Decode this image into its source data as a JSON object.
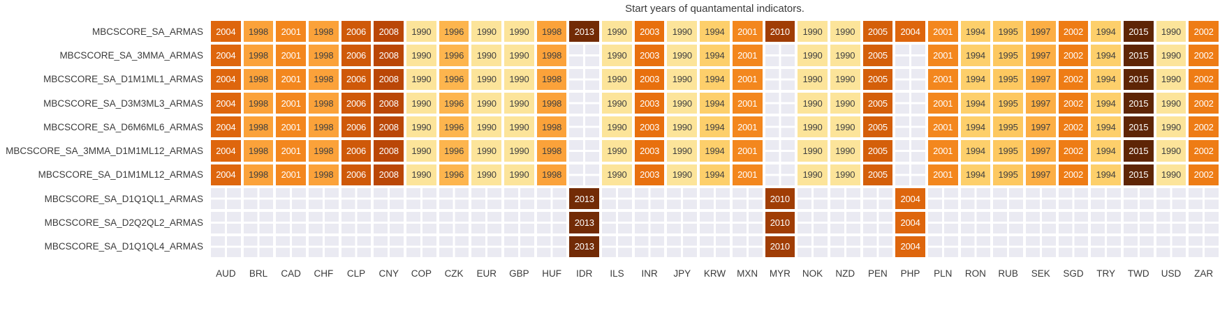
{
  "title": "Start years of quantamental indicators.",
  "chart_data": {
    "type": "heatmap",
    "title": "Start years of quantamental indicators.",
    "colormap": "YlOrBr",
    "value_range": [
      1990,
      2015
    ],
    "grid_background": "#ffffff",
    "empty_cell_color": "#eaeaf2",
    "dark_text_color": "#3f3f3f",
    "light_text_color": "#ffffff",
    "dark_text_max_year": 1998,
    "year_colors": {
      "1990": "#fce49a",
      "1994": "#fdcf6b",
      "1995": "#fdc860",
      "1996": "#fdb54e",
      "1997": "#fcae44",
      "1998": "#fba23a",
      "2001": "#f3871e",
      "2002": "#ee7c15",
      "2003": "#e8700e",
      "2004": "#de660d",
      "2005": "#d45f0a",
      "2006": "#cf5909",
      "2008": "#ba4707",
      "2010": "#a03d05",
      "2013": "#722b06",
      "2015": "#5e2506"
    },
    "columns": [
      "AUD",
      "BRL",
      "CAD",
      "CHF",
      "CLP",
      "CNY",
      "COP",
      "CZK",
      "EUR",
      "GBP",
      "HUF",
      "IDR",
      "ILS",
      "INR",
      "JPY",
      "KRW",
      "MXN",
      "MYR",
      "NOK",
      "NZD",
      "PEN",
      "PHP",
      "PLN",
      "RON",
      "RUB",
      "SEK",
      "SGD",
      "TRY",
      "TWD",
      "USD",
      "ZAR"
    ],
    "rows": [
      "MBCSCORE_SA_ARMAS",
      "MBCSCORE_SA_3MMA_ARMAS",
      "MBCSCORE_SA_D1M1ML1_ARMAS",
      "MBCSCORE_SA_D3M3ML3_ARMAS",
      "MBCSCORE_SA_D6M6ML6_ARMAS",
      "MBCSCORE_SA_3MMA_D1M1ML12_ARMAS",
      "MBCSCORE_SA_D1M1ML12_ARMAS",
      "MBCSCORE_SA_D1Q1QL1_ARMAS",
      "MBCSCORE_SA_D2Q2QL2_ARMAS",
      "MBCSCORE_SA_D1Q1QL4_ARMAS"
    ],
    "values": [
      [
        "2004",
        "1998",
        "2001",
        "1998",
        "2006",
        "2008",
        "1990",
        "1996",
        "1990",
        "1990",
        "1998",
        "2013",
        "1990",
        "2003",
        "1990",
        "1994",
        "2001",
        "2010",
        "1990",
        "1990",
        "2005",
        "2004",
        "2001",
        "1994",
        "1995",
        "1997",
        "2002",
        "1994",
        "2015",
        "1990",
        "2002"
      ],
      [
        "2004",
        "1998",
        "2001",
        "1998",
        "2006",
        "2008",
        "1990",
        "1996",
        "1990",
        "1990",
        "1998",
        "",
        "1990",
        "2003",
        "1990",
        "1994",
        "2001",
        "",
        "1990",
        "1990",
        "2005",
        "",
        "2001",
        "1994",
        "1995",
        "1997",
        "2002",
        "1994",
        "2015",
        "1990",
        "2002"
      ],
      [
        "2004",
        "1998",
        "2001",
        "1998",
        "2006",
        "2008",
        "1990",
        "1996",
        "1990",
        "1990",
        "1998",
        "",
        "1990",
        "2003",
        "1990",
        "1994",
        "2001",
        "",
        "1990",
        "1990",
        "2005",
        "",
        "2001",
        "1994",
        "1995",
        "1997",
        "2002",
        "1994",
        "2015",
        "1990",
        "2002"
      ],
      [
        "2004",
        "1998",
        "2001",
        "1998",
        "2006",
        "2008",
        "1990",
        "1996",
        "1990",
        "1990",
        "1998",
        "",
        "1990",
        "2003",
        "1990",
        "1994",
        "2001",
        "",
        "1990",
        "1990",
        "2005",
        "",
        "2001",
        "1994",
        "1995",
        "1997",
        "2002",
        "1994",
        "2015",
        "1990",
        "2002"
      ],
      [
        "2004",
        "1998",
        "2001",
        "1998",
        "2006",
        "2008",
        "1990",
        "1996",
        "1990",
        "1990",
        "1998",
        "",
        "1990",
        "2003",
        "1990",
        "1994",
        "2001",
        "",
        "1990",
        "1990",
        "2005",
        "",
        "2001",
        "1994",
        "1995",
        "1997",
        "2002",
        "1994",
        "2015",
        "1990",
        "2002"
      ],
      [
        "2004",
        "1998",
        "2001",
        "1998",
        "2006",
        "2008",
        "1990",
        "1996",
        "1990",
        "1990",
        "1998",
        "",
        "1990",
        "2003",
        "1990",
        "1994",
        "2001",
        "",
        "1990",
        "1990",
        "2005",
        "",
        "2001",
        "1994",
        "1995",
        "1997",
        "2002",
        "1994",
        "2015",
        "1990",
        "2002"
      ],
      [
        "2004",
        "1998",
        "2001",
        "1998",
        "2006",
        "2008",
        "1990",
        "1996",
        "1990",
        "1990",
        "1998",
        "",
        "1990",
        "2003",
        "1990",
        "1994",
        "2001",
        "",
        "1990",
        "1990",
        "2005",
        "",
        "2001",
        "1994",
        "1995",
        "1997",
        "2002",
        "1994",
        "2015",
        "1990",
        "2002"
      ],
      [
        "",
        "",
        "",
        "",
        "",
        "",
        "",
        "",
        "",
        "",
        "",
        "2013",
        "",
        "",
        "",
        "",
        "",
        "2010",
        "",
        "",
        "",
        "2004",
        "",
        "",
        "",
        "",
        "",
        "",
        "",
        "",
        ""
      ],
      [
        "",
        "",
        "",
        "",
        "",
        "",
        "",
        "",
        "",
        "",
        "",
        "2013",
        "",
        "",
        "",
        "",
        "",
        "2010",
        "",
        "",
        "",
        "2004",
        "",
        "",
        "",
        "",
        "",
        "",
        "",
        "",
        ""
      ],
      [
        "",
        "",
        "",
        "",
        "",
        "",
        "",
        "",
        "",
        "",
        "",
        "2013",
        "",
        "",
        "",
        "",
        "",
        "2010",
        "",
        "",
        "",
        "2004",
        "",
        "",
        "",
        "",
        "",
        "",
        "",
        "",
        ""
      ]
    ],
    "legend_position": "none",
    "grid_on": true
  }
}
